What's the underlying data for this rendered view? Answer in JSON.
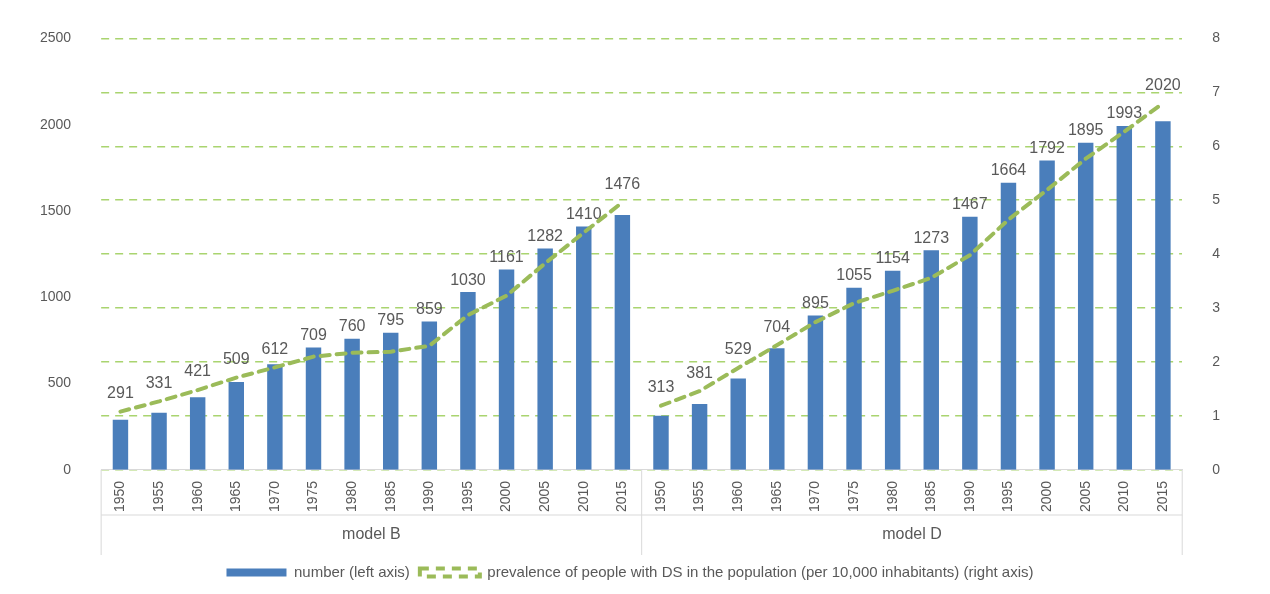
{
  "chart_data": {
    "type": "bar",
    "categories": [
      "1950",
      "1955",
      "1960",
      "1965",
      "1970",
      "1975",
      "1980",
      "1985",
      "1990",
      "1995",
      "2000",
      "2005",
      "2010",
      "2015",
      "1950",
      "1955",
      "1960",
      "1965",
      "1970",
      "1975",
      "1980",
      "1985",
      "1990",
      "1995",
      "2000",
      "2005",
      "2010",
      "2015"
    ],
    "series": [
      {
        "name": "number (left axis)",
        "color": "#4a7ebb",
        "value_labels": [
          "291",
          "331",
          "421",
          "509",
          "612",
          "709",
          "760",
          "795",
          "859",
          "1030",
          "1161",
          "1282",
          "1410",
          "1476",
          "313",
          "381",
          "529",
          "704",
          "895",
          "1055",
          "1154",
          "1273",
          "1467",
          "1664",
          "1792",
          "1895",
          "1993",
          "2020"
        ],
        "values": [
          291,
          331,
          421,
          509,
          612,
          709,
          760,
          795,
          859,
          1030,
          1161,
          1282,
          1410,
          1476,
          313,
          381,
          529,
          704,
          895,
          1055,
          1154,
          1273,
          1467,
          1664,
          1792,
          1895,
          1993,
          2020
        ]
      },
      {
        "name": "prevalence of people with DS in the population (per 10,000 inhabitants) (right axis)",
        "type": "line",
        "axis": "y2",
        "color": "#9bbb59",
        "line_style": "dashed",
        "marker": "none",
        "values": [
          1.08,
          1.27,
          1.48,
          1.71,
          1.9,
          2.1,
          2.17,
          2.19,
          2.3,
          2.87,
          3.23,
          3.83,
          4.4,
          4.96,
          1.19,
          1.46,
          1.89,
          2.31,
          2.74,
          3.09,
          3.32,
          3.56,
          3.98,
          4.64,
          5.19,
          5.77,
          6.27,
          6.8
        ]
      }
    ],
    "annotations": [
      "model B",
      "model D"
    ],
    "ylim": [
      0,
      2500
    ],
    "yticks": [
      0,
      500,
      1000,
      1500,
      2000,
      2500
    ],
    "y2lim": [
      0,
      8
    ],
    "y2ticks": [
      0,
      1,
      2,
      3,
      4,
      5,
      6,
      7,
      8
    ],
    "grid": "y",
    "legend": "bottom"
  }
}
